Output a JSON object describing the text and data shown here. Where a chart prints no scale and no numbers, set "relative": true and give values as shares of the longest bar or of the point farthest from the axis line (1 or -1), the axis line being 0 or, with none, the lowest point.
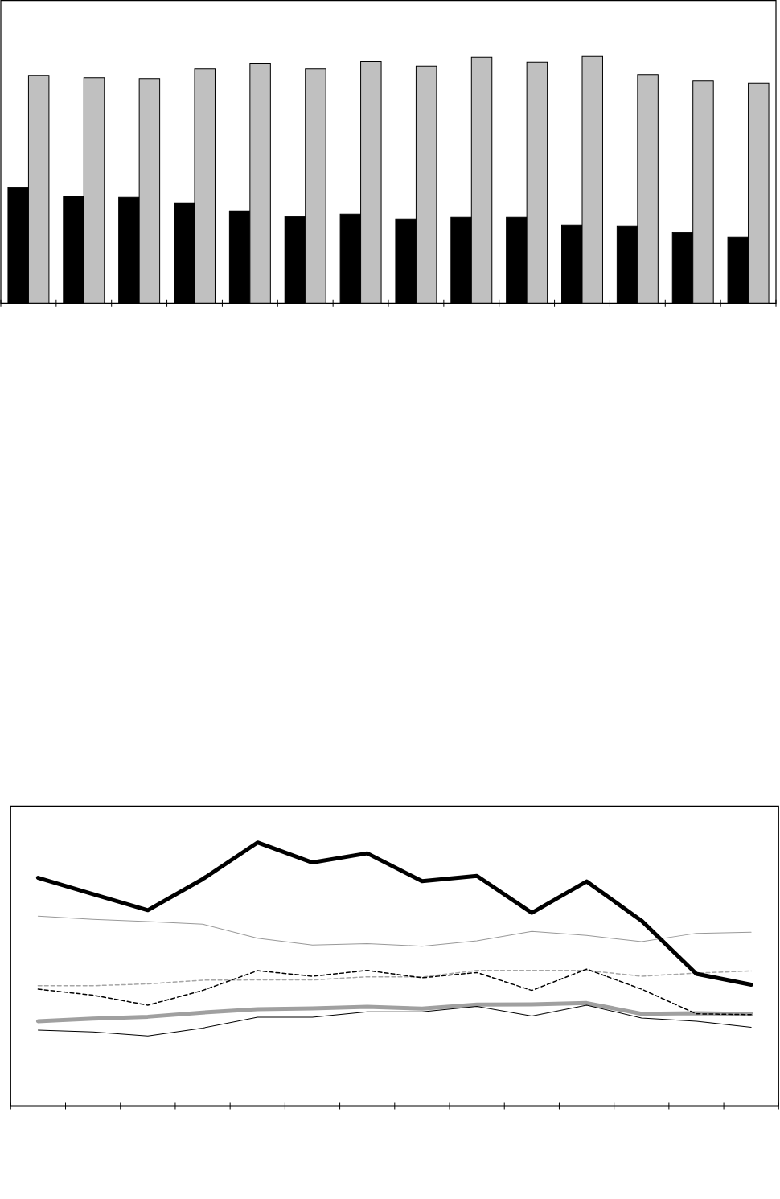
{
  "chart_data": [
    {
      "type": "bar",
      "relative": true,
      "categories": [
        null,
        null,
        null,
        null,
        null,
        null,
        null,
        null,
        null,
        null,
        null,
        null,
        null,
        null
      ],
      "series": [
        {
          "color": "#000000",
          "values": [
            0.469,
            0.433,
            0.43,
            0.407,
            0.375,
            0.352,
            0.362,
            0.342,
            0.349,
            0.349,
            0.316,
            0.313,
            0.287,
            0.267
          ]
        },
        {
          "color": "#c0c0c0",
          "values": [
            0.924,
            0.914,
            0.911,
            0.95,
            0.973,
            0.95,
            0.98,
            0.961,
            0.997,
            0.977,
            1,
            0.927,
            0.901,
            0.893
          ]
        }
      ]
    },
    {
      "type": "line",
      "relative": true,
      "categories": [
        null,
        null,
        null,
        null,
        null,
        null,
        null,
        null,
        null,
        null,
        null,
        null,
        null,
        null
      ],
      "series": [
        {
          "color": "#a0a0a0",
          "line_style": "solid",
          "values": [
            0.321,
            0.331,
            0.338,
            0.354,
            0.367,
            0.37,
            0.376,
            0.369,
            0.384,
            0.385,
            0.39,
            0.349,
            0.351,
            0.348
          ]
        },
        {
          "color": "#999999",
          "line_style": "solid",
          "values": [
            0.72,
            0.708,
            0.7,
            0.69,
            0.636,
            0.61,
            0.616,
            0.606,
            0.626,
            0.662,
            0.647,
            0.623,
            0.655,
            0.659
          ]
        },
        {
          "color": "#a6a6a6",
          "line_style": "dashed",
          "values": [
            0.456,
            0.456,
            0.463,
            0.477,
            0.478,
            0.478,
            0.49,
            0.489,
            0.514,
            0.514,
            0.514,
            0.492,
            0.504,
            0.512
          ]
        },
        {
          "color": "#000000",
          "line_style": "dashed",
          "values": [
            0.443,
            0.42,
            0.382,
            0.438,
            0.513,
            0.492,
            0.514,
            0.486,
            0.506,
            0.438,
            0.519,
            0.443,
            0.349,
            0.346
          ]
        },
        {
          "color": "#000000",
          "line_style": "solid",
          "values": [
            0.287,
            0.28,
            0.265,
            0.295,
            0.336,
            0.336,
            0.357,
            0.357,
            0.377,
            0.341,
            0.382,
            0.333,
            0.321,
            0.298
          ]
        },
        {
          "color": "#000000",
          "line_style": "solid",
          "values": [
            0.866,
            0.804,
            0.743,
            0.861,
            1,
            0.924,
            0.959,
            0.853,
            0.873,
            0.733,
            0.852,
            0.703,
            0.501,
            0.46
          ]
        }
      ]
    }
  ]
}
